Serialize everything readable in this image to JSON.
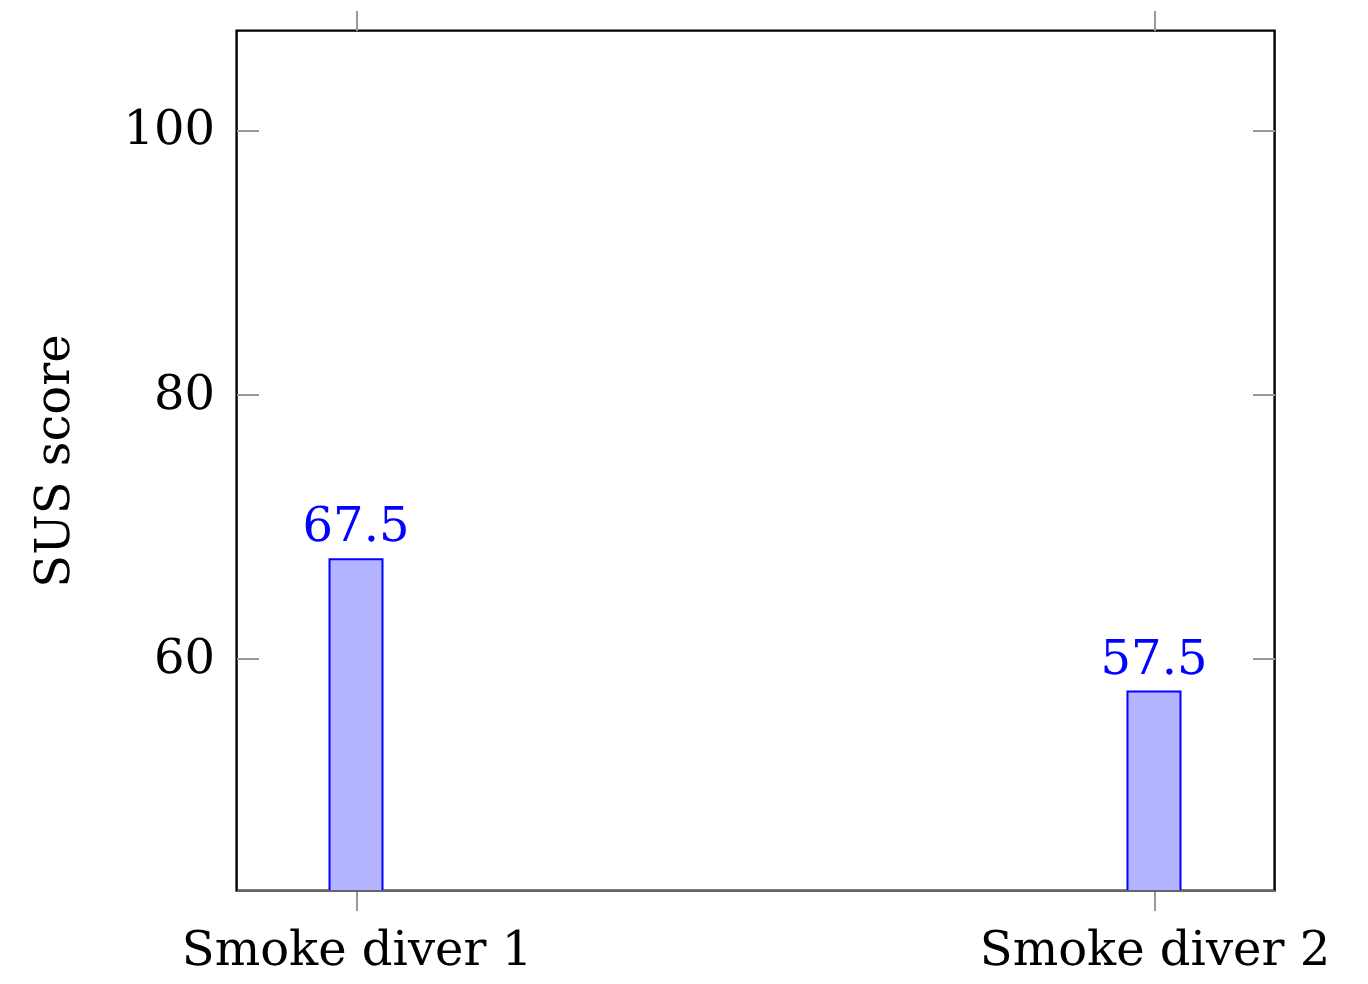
{
  "chart_data": {
    "type": "bar",
    "ylabel": "SUS score",
    "categories": [
      "Smoke diver 1",
      "Smoke diver 2"
    ],
    "values": [
      67.5,
      57.5
    ],
    "color": "#b3b3ff",
    "ylim": [
      42.5,
      107.5
    ],
    "yticks": [
      60,
      80,
      100
    ],
    "data_labels": true
  }
}
